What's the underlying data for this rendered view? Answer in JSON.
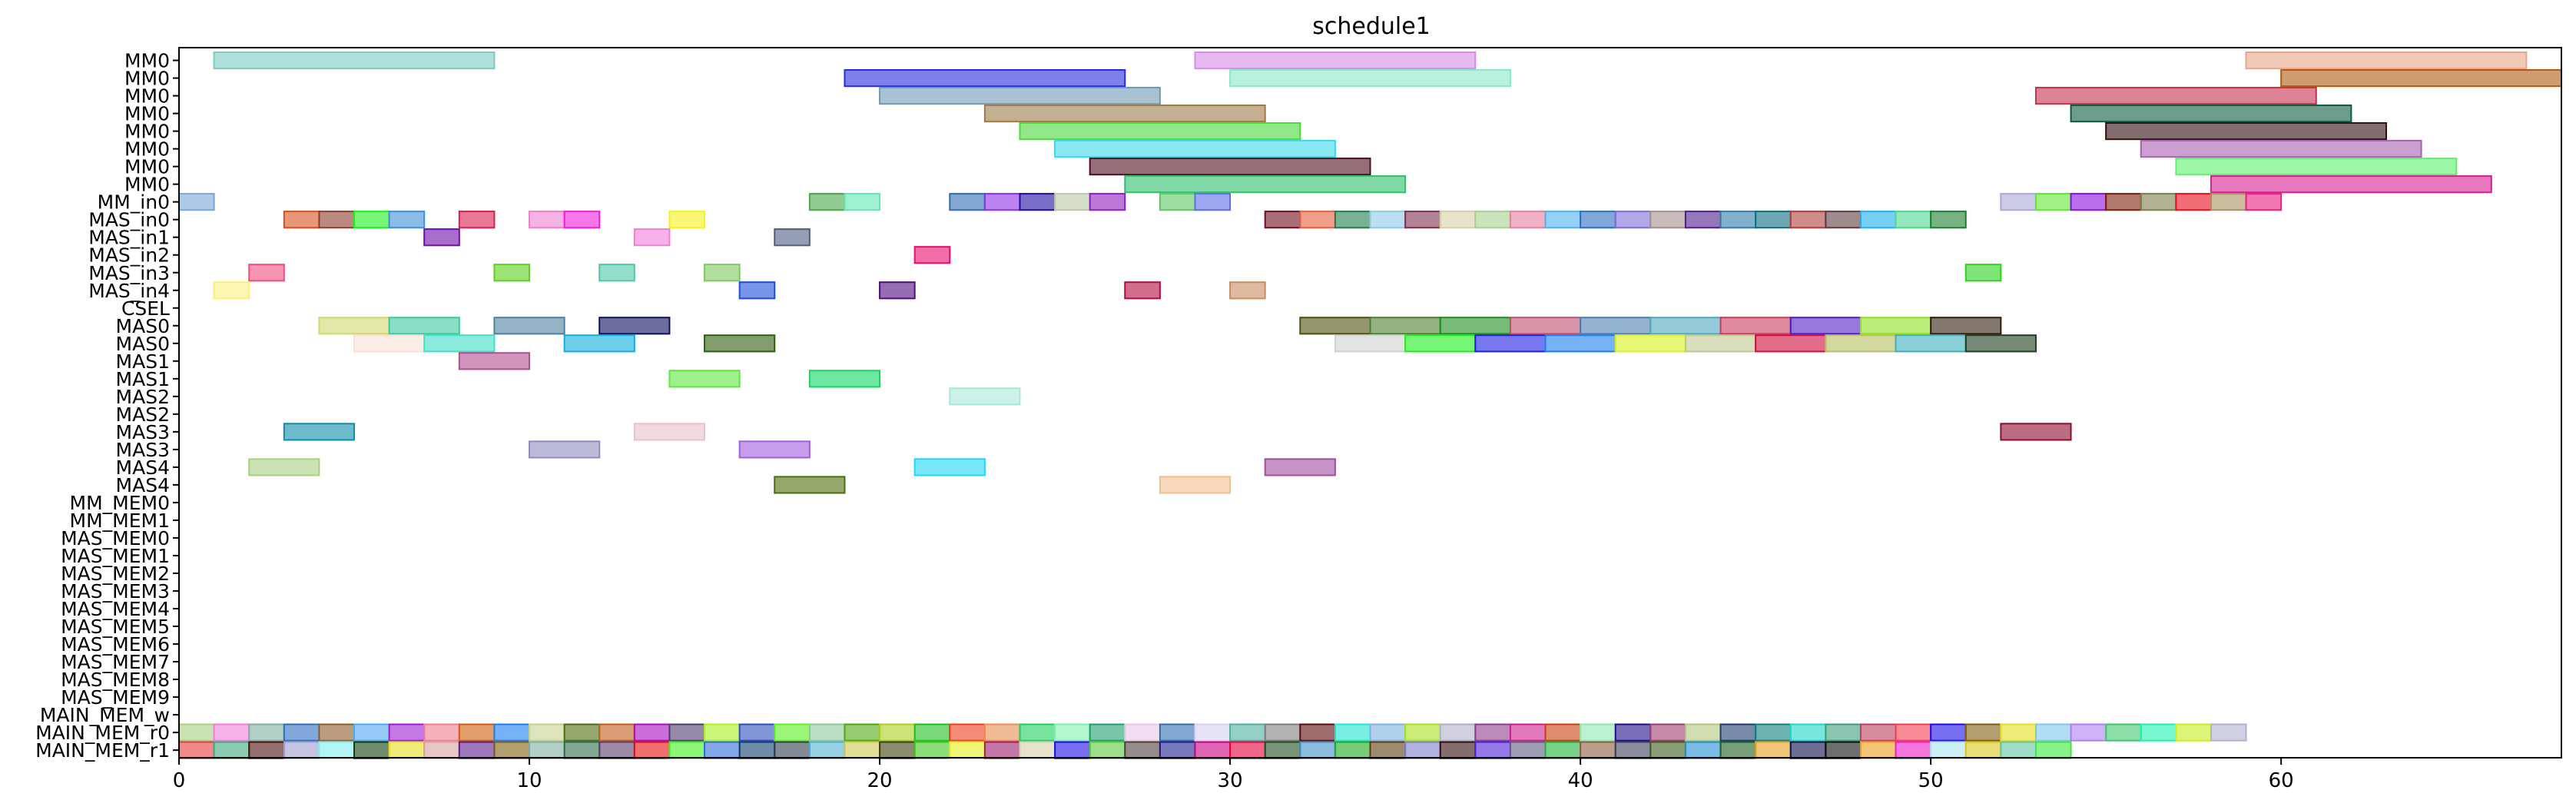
{
  "chart_data": {
    "type": "gantt",
    "title": "schedule1",
    "xlabel": "",
    "ylabel": "",
    "xlim": [
      0,
      68
    ],
    "x_ticks": [
      0,
      10,
      20,
      30,
      40,
      50,
      60
    ],
    "grid": false,
    "rows": [
      "MM0",
      "MM0",
      "MM0",
      "MM0",
      "MM0",
      "MM0",
      "MM0",
      "MM0",
      "MM_in0",
      "MAS_in0",
      "MAS_in1",
      "MAS_in2",
      "MAS_in3",
      "MAS_in4",
      "CSEL",
      "MAS0",
      "MAS0",
      "MAS1",
      "MAS1",
      "MAS2",
      "MAS2",
      "MAS3",
      "MAS3",
      "MAS4",
      "MAS4",
      "MM_MEM0",
      "MM_MEM1",
      "MAS_MEM0",
      "MAS_MEM1",
      "MAS_MEM2",
      "MAS_MEM3",
      "MAS_MEM4",
      "MAS_MEM5",
      "MAS_MEM6",
      "MAS_MEM7",
      "MAS_MEM8",
      "MAS_MEM9",
      "MAIN_MEM_w",
      "MAIN_MEM_r0",
      "MAIN_MEM_r1"
    ],
    "bars": [
      {
        "row": 0,
        "start": 1,
        "end": 9,
        "color": "#7ccbc3",
        "alpha": 0.6
      },
      {
        "row": 0,
        "start": 29,
        "end": 37,
        "color": "#d58ce8",
        "alpha": 0.6
      },
      {
        "row": 0,
        "start": 59,
        "end": 67,
        "color": "#e8a58a",
        "alpha": 0.6
      },
      {
        "row": 1,
        "start": 19,
        "end": 27,
        "color": "#2a2ae0",
        "alpha": 0.6
      },
      {
        "row": 1,
        "start": 30,
        "end": 38,
        "color": "#8ae8c8",
        "alpha": 0.6
      },
      {
        "row": 1,
        "start": 60,
        "end": 68,
        "color": "#b05a10",
        "alpha": 0.6
      },
      {
        "row": 2,
        "start": 20,
        "end": 28,
        "color": "#6e9ab5",
        "alpha": 0.6
      },
      {
        "row": 2,
        "start": 53,
        "end": 61,
        "color": "#c4304f",
        "alpha": 0.6
      },
      {
        "row": 3,
        "start": 23,
        "end": 31,
        "color": "#9e7a48",
        "alpha": 0.6
      },
      {
        "row": 3,
        "start": 54,
        "end": 62,
        "color": "#0e5a3e",
        "alpha": 0.6
      },
      {
        "row": 4,
        "start": 24,
        "end": 32,
        "color": "#4ad83a",
        "alpha": 0.6
      },
      {
        "row": 4,
        "start": 55,
        "end": 63,
        "color": "#2e0e0e",
        "alpha": 0.6
      },
      {
        "row": 5,
        "start": 25,
        "end": 33,
        "color": "#3ad8e8",
        "alpha": 0.6
      },
      {
        "row": 5,
        "start": 56,
        "end": 64,
        "color": "#a860b0",
        "alpha": 0.6
      },
      {
        "row": 6,
        "start": 26,
        "end": 34,
        "color": "#4e0e1e",
        "alpha": 0.6
      },
      {
        "row": 6,
        "start": 57,
        "end": 65,
        "color": "#5ef06e",
        "alpha": 0.6
      },
      {
        "row": 7,
        "start": 27,
        "end": 35,
        "color": "#2ec06e",
        "alpha": 0.6
      },
      {
        "row": 7,
        "start": 58,
        "end": 66,
        "color": "#d81e90",
        "alpha": 0.6
      },
      {
        "row": 8,
        "start": 0,
        "end": 1,
        "color": "#7aa6d8",
        "alpha": 0.6
      },
      {
        "row": 8,
        "start": 18,
        "end": 19,
        "color": "#48a848",
        "alpha": 0.6
      },
      {
        "row": 8,
        "start": 19,
        "end": 20,
        "color": "#5ee8b0",
        "alpha": 0.6
      },
      {
        "row": 8,
        "start": 22,
        "end": 23,
        "color": "#2e6eb0",
        "alpha": 0.6
      },
      {
        "row": 8,
        "start": 23,
        "end": 24,
        "color": "#8e2ee8",
        "alpha": 0.6
      },
      {
        "row": 8,
        "start": 24,
        "end": 25,
        "color": "#1e0ea0",
        "alpha": 0.6
      },
      {
        "row": 8,
        "start": 25,
        "end": 26,
        "color": "#b8c8a8",
        "alpha": 0.6
      },
      {
        "row": 8,
        "start": 26,
        "end": 27,
        "color": "#8e1ec0",
        "alpha": 0.6
      },
      {
        "row": 8,
        "start": 28,
        "end": 29,
        "color": "#5ec860",
        "alpha": 0.6
      },
      {
        "row": 8,
        "start": 29,
        "end": 30,
        "color": "#5e6ee8",
        "alpha": 0.6
      },
      {
        "row": 8,
        "start": 52,
        "end": 53,
        "color": "#a8a8d8",
        "alpha": 0.6
      },
      {
        "row": 8,
        "start": 53,
        "end": 54,
        "color": "#5ee82e",
        "alpha": 0.6
      },
      {
        "row": 8,
        "start": 54,
        "end": 55,
        "color": "#8e0ee0",
        "alpha": 0.6
      },
      {
        "row": 8,
        "start": 55,
        "end": 56,
        "color": "#7e1e0e",
        "alpha": 0.6
      },
      {
        "row": 8,
        "start": 56,
        "end": 57,
        "color": "#7e7e4e",
        "alpha": 0.6
      },
      {
        "row": 8,
        "start": 57,
        "end": 58,
        "color": "#e80e1e",
        "alpha": 0.6
      },
      {
        "row": 8,
        "start": 58,
        "end": 59,
        "color": "#a89060",
        "alpha": 0.6
      },
      {
        "row": 8,
        "start": 59,
        "end": 60,
        "color": "#e81e7e",
        "alpha": 0.6
      },
      {
        "row": 9,
        "start": 3,
        "end": 4,
        "color": "#d84e1e",
        "alpha": 0.6
      },
      {
        "row": 9,
        "start": 4,
        "end": 5,
        "color": "#8e3e2e",
        "alpha": 0.6
      },
      {
        "row": 9,
        "start": 5,
        "end": 6,
        "color": "#1ef01e",
        "alpha": 0.6
      },
      {
        "row": 9,
        "start": 6,
        "end": 7,
        "color": "#3e90d8",
        "alpha": 0.6
      },
      {
        "row": 9,
        "start": 8,
        "end": 9,
        "color": "#d81e4e",
        "alpha": 0.6
      },
      {
        "row": 9,
        "start": 10,
        "end": 11,
        "color": "#f07ed0",
        "alpha": 0.6
      },
      {
        "row": 9,
        "start": 11,
        "end": 12,
        "color": "#f01ed8",
        "alpha": 0.6
      },
      {
        "row": 9,
        "start": 14,
        "end": 15,
        "color": "#f8f01e",
        "alpha": 0.6
      },
      {
        "row": 9,
        "start": 31,
        "end": 32,
        "color": "#6e0e1e",
        "alpha": 0.6
      },
      {
        "row": 9,
        "start": 32,
        "end": 33,
        "color": "#e85e3e",
        "alpha": 0.6
      },
      {
        "row": 9,
        "start": 33,
        "end": 34,
        "color": "#1e7e4e",
        "alpha": 0.6
      },
      {
        "row": 9,
        "start": 34,
        "end": 35,
        "color": "#90c8e8",
        "alpha": 0.6
      },
      {
        "row": 9,
        "start": 35,
        "end": 36,
        "color": "#7e2e4e",
        "alpha": 0.6
      },
      {
        "row": 9,
        "start": 36,
        "end": 37,
        "color": "#d8d0a8",
        "alpha": 0.6
      },
      {
        "row": 9,
        "start": 37,
        "end": 38,
        "color": "#a8d090",
        "alpha": 0.6
      },
      {
        "row": 9,
        "start": 38,
        "end": 39,
        "color": "#e87ea0",
        "alpha": 0.6
      },
      {
        "row": 9,
        "start": 39,
        "end": 40,
        "color": "#4eb0f0",
        "alpha": 0.6
      },
      {
        "row": 9,
        "start": 40,
        "end": 41,
        "color": "#2e6ec0",
        "alpha": 0.6
      },
      {
        "row": 9,
        "start": 41,
        "end": 42,
        "color": "#7e6ed8",
        "alpha": 0.6
      },
      {
        "row": 9,
        "start": 42,
        "end": 43,
        "color": "#a89090",
        "alpha": 0.6
      },
      {
        "row": 9,
        "start": 43,
        "end": 44,
        "color": "#4e1e90",
        "alpha": 0.6
      },
      {
        "row": 9,
        "start": 44,
        "end": 45,
        "color": "#2e7ea8",
        "alpha": 0.6
      },
      {
        "row": 9,
        "start": 45,
        "end": 46,
        "color": "#0e6e7e",
        "alpha": 0.6
      },
      {
        "row": 9,
        "start": 46,
        "end": 47,
        "color": "#b03e3e",
        "alpha": 0.6
      },
      {
        "row": 9,
        "start": 47,
        "end": 48,
        "color": "#5e3e3e",
        "alpha": 0.6
      },
      {
        "row": 9,
        "start": 48,
        "end": 49,
        "color": "#1eb0f0",
        "alpha": 0.6
      },
      {
        "row": 9,
        "start": 49,
        "end": 50,
        "color": "#4ed890",
        "alpha": 0.6
      },
      {
        "row": 9,
        "start": 50,
        "end": 51,
        "color": "#1e7e2e",
        "alpha": 0.6
      },
      {
        "row": 10,
        "start": 7,
        "end": 8,
        "color": "#6e0ea8",
        "alpha": 0.6
      },
      {
        "row": 10,
        "start": 13,
        "end": 14,
        "color": "#f07ed8",
        "alpha": 0.6
      },
      {
        "row": 10,
        "start": 17,
        "end": 18,
        "color": "#4e5e7e",
        "alpha": 0.6
      },
      {
        "row": 11,
        "start": 21,
        "end": 22,
        "color": "#e80e6e",
        "alpha": 0.6
      },
      {
        "row": 12,
        "start": 2,
        "end": 3,
        "color": "#f04e7e",
        "alpha": 0.6
      },
      {
        "row": 12,
        "start": 9,
        "end": 10,
        "color": "#5ed01e",
        "alpha": 0.6
      },
      {
        "row": 12,
        "start": 12,
        "end": 13,
        "color": "#4ec8a8",
        "alpha": 0.6
      },
      {
        "row": 12,
        "start": 15,
        "end": 16,
        "color": "#7ec860",
        "alpha": 0.6
      },
      {
        "row": 12,
        "start": 51,
        "end": 52,
        "color": "#2ed01e",
        "alpha": 0.6
      },
      {
        "row": 13,
        "start": 1,
        "end": 2,
        "color": "#f8f07e",
        "alpha": 0.6
      },
      {
        "row": 13,
        "start": 16,
        "end": 17,
        "color": "#1e4ed8",
        "alpha": 0.6
      },
      {
        "row": 13,
        "start": 20,
        "end": 21,
        "color": "#4e0e7e",
        "alpha": 0.6
      },
      {
        "row": 13,
        "start": 27,
        "end": 28,
        "color": "#b00e3e",
        "alpha": 0.6
      },
      {
        "row": 13,
        "start": 30,
        "end": 31,
        "color": "#c88e60",
        "alpha": 0.6
      },
      {
        "row": 15,
        "start": 4,
        "end": 6,
        "color": "#d0d870",
        "alpha": 0.6
      },
      {
        "row": 15,
        "start": 6,
        "end": 8,
        "color": "#3ec8a0",
        "alpha": 0.6
      },
      {
        "row": 15,
        "start": 9,
        "end": 11,
        "color": "#4e7ea0",
        "alpha": 0.6
      },
      {
        "row": 15,
        "start": 12,
        "end": 14,
        "color": "#0e0e5e",
        "alpha": 0.6
      },
      {
        "row": 15,
        "start": 32,
        "end": 34,
        "color": "#4e4e0e",
        "alpha": 0.6
      },
      {
        "row": 15,
        "start": 34,
        "end": 36,
        "color": "#4e7e2e",
        "alpha": 0.6
      },
      {
        "row": 15,
        "start": 36,
        "end": 38,
        "color": "#1e8e1e",
        "alpha": 0.6
      },
      {
        "row": 15,
        "start": 38,
        "end": 40,
        "color": "#c04e6e",
        "alpha": 0.6
      },
      {
        "row": 15,
        "start": 40,
        "end": 42,
        "color": "#4e7eb0",
        "alpha": 0.6
      },
      {
        "row": 15,
        "start": 42,
        "end": 44,
        "color": "#4ea8c0",
        "alpha": 0.6
      },
      {
        "row": 15,
        "start": 44,
        "end": 46,
        "color": "#c83e5e",
        "alpha": 0.6
      },
      {
        "row": 15,
        "start": 46,
        "end": 48,
        "color": "#4e1ec0",
        "alpha": 0.6
      },
      {
        "row": 15,
        "start": 48,
        "end": 50,
        "color": "#90e01e",
        "alpha": 0.6
      },
      {
        "row": 15,
        "start": 50,
        "end": 52,
        "color": "#2e1e0e",
        "alpha": 0.6
      },
      {
        "row": 16,
        "start": 5,
        "end": 7,
        "color": "#f8e0d8",
        "alpha": 0.6
      },
      {
        "row": 16,
        "start": 7,
        "end": 9,
        "color": "#3ee0c8",
        "alpha": 0.6
      },
      {
        "row": 16,
        "start": 11,
        "end": 13,
        "color": "#0eb0e0",
        "alpha": 0.6
      },
      {
        "row": 16,
        "start": 15,
        "end": 17,
        "color": "#2e5e0e",
        "alpha": 0.6
      },
      {
        "row": 16,
        "start": 33,
        "end": 35,
        "color": "#d0d0d0",
        "alpha": 0.6
      },
      {
        "row": 16,
        "start": 35,
        "end": 37,
        "color": "#1ef01e",
        "alpha": 0.6
      },
      {
        "row": 16,
        "start": 37,
        "end": 39,
        "color": "#1e1ee8",
        "alpha": 0.6
      },
      {
        "row": 16,
        "start": 39,
        "end": 41,
        "color": "#1e7ef0",
        "alpha": 0.6
      },
      {
        "row": 16,
        "start": 41,
        "end": 43,
        "color": "#d8f01e",
        "alpha": 0.6
      },
      {
        "row": 16,
        "start": 43,
        "end": 45,
        "color": "#c0c890",
        "alpha": 0.6
      },
      {
        "row": 16,
        "start": 45,
        "end": 47,
        "color": "#d00e3e",
        "alpha": 0.6
      },
      {
        "row": 16,
        "start": 47,
        "end": 49,
        "color": "#b8c060",
        "alpha": 0.6
      },
      {
        "row": 16,
        "start": 49,
        "end": 51,
        "color": "#3eb0c0",
        "alpha": 0.6
      },
      {
        "row": 16,
        "start": 51,
        "end": 53,
        "color": "#1e3e1e",
        "alpha": 0.6
      },
      {
        "row": 17,
        "start": 8,
        "end": 10,
        "color": "#b04e90",
        "alpha": 0.6
      },
      {
        "row": 18,
        "start": 18,
        "end": 20,
        "color": "#0ed860",
        "alpha": 0.6
      },
      {
        "row": 18,
        "start": 14,
        "end": 16,
        "color": "#5ee83e",
        "alpha": 0.6
      },
      {
        "row": 19,
        "start": 22,
        "end": 24,
        "color": "#a8e8d8",
        "alpha": 0.6
      },
      {
        "row": 21,
        "start": 3,
        "end": 5,
        "color": "#0e8ea8",
        "alpha": 0.6
      },
      {
        "row": 21,
        "start": 13,
        "end": 15,
        "color": "#e8c0c8",
        "alpha": 0.6
      },
      {
        "row": 21,
        "start": 52,
        "end": 54,
        "color": "#8e0e2e",
        "alpha": 0.6
      },
      {
        "row": 22,
        "start": 10,
        "end": 12,
        "color": "#8e8ec0",
        "alpha": 0.6
      },
      {
        "row": 22,
        "start": 16,
        "end": 18,
        "color": "#a05ee0",
        "alpha": 0.6
      },
      {
        "row": 23,
        "start": 2,
        "end": 4,
        "color": "#a8d07e",
        "alpha": 0.6
      },
      {
        "row": 23,
        "start": 21,
        "end": 23,
        "color": "#1ed8f8",
        "alpha": 0.6
      },
      {
        "row": 23,
        "start": 31,
        "end": 33,
        "color": "#a04ea0",
        "alpha": 0.6
      },
      {
        "row": 24,
        "start": 17,
        "end": 19,
        "color": "#4e6e0e",
        "alpha": 0.6
      },
      {
        "row": 24,
        "start": 28,
        "end": 30,
        "color": "#f0c08e",
        "alpha": 0.6
      }
    ],
    "mem_r0_colors": [
      "#a8d07e",
      "#f07ed8",
      "#7eb0a0",
      "#2e6ec0",
      "#8e5e2e",
      "#4ea8f0",
      "#9e1ed0",
      "#f07e90",
      "#d05e0e",
      "#1e7ef0",
      "#c8d08e",
      "#4e6e0e",
      "#c05e1e",
      "#a80ec0",
      "#4e3e6e",
      "#a8f01e",
      "#2e4ec0",
      "#5ef01e",
      "#90c8a0",
      "#4ea80e",
      "#a8d01e",
      "#1ec01e",
      "#f03e1e",
      "#e88e4e",
      "#1ed05e",
      "#7ef0b0",
      "#1e9e6e",
      "#e8c8e8",
      "#2e6eb0",
      "#d8d0f0",
      "#4eb0a0",
      "#7e7e7e",
      "#5e0e0e",
      "#1ee8d0",
      "#7eb0e0",
      "#a8e01e",
      "#b0b0c8",
      "#8e3e90",
      "#d01e90",
      "#c83e0e",
      "#8ee8b0",
      "#1e0e8e",
      "#9e3e6e",
      "#b0c87e",
      "#1e3e6e",
      "#0e7e7e",
      "#1ed8c8",
      "#3e9e7e",
      "#c03e5e",
      "#f03e4e",
      "#1e0ee8",
      "#7e5e0e",
      "#e8e01e",
      "#7ec8e8",
      "#b07ef0",
      "#3ec86e",
      "#1ef0b0",
      "#c8f01e",
      "#b0b0d0"
    ],
    "mem_r1_colors": [
      "#e83e3e",
      "#3ea87e",
      "#4e0e0e",
      "#9e9ed0",
      "#7ef0f0",
      "#0e3e0e",
      "#e8e01e",
      "#d8a0a0",
      "#5e1e90",
      "#7e5e0e",
      "#7eb0a0",
      "#2e6e4e",
      "#5e3e6e",
      "#e80e0e",
      "#3ef01e",
      "#2e6ed8",
      "#0e3e6e",
      "#2e3e4e",
      "#4eb0d0",
      "#d0c84e",
      "#3e3e0e",
      "#3ec81e",
      "#e8f01e",
      "#9e1e6e",
      "#d8d0a8",
      "#1e0ee8",
      "#5ec83e",
      "#4e3e3e",
      "#1e1e8e",
      "#c8007e",
      "#e8003e",
      "#1e4e1e",
      "#3e90c8",
      "#1ea81e",
      "#5e3e0e",
      "#7e7ec8",
      "#2e0e0e",
      "#4e1ed8",
      "#5e5e7e",
      "#1eb03e",
      "#8e5e3e",
      "#3e3e5e",
      "#3e5e1e",
      "#1e90d0",
      "#1e5e1e",
      "#e8a01e",
      "#0e0e4e",
      "#0e0e0e",
      "#f0a01e",
      "#f01ec8",
      "#a8e8f0",
      "#d8c81e",
      "#5ec8a0",
      "#3ee83e"
    ]
  }
}
